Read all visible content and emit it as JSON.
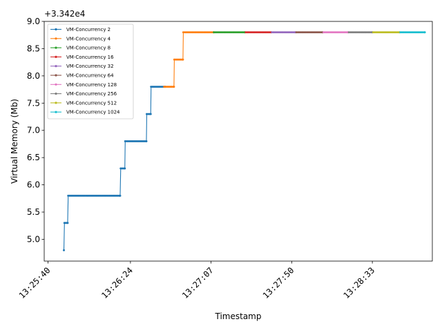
{
  "chart_data": {
    "type": "line",
    "title": "",
    "xlabel": "Timestamp",
    "ylabel": "Virtual Memory (Mb)",
    "y_offset_label": "+3.342e4",
    "ylim": [
      4.6,
      9.0
    ],
    "xlim_seconds": [
      -2,
      146
    ],
    "y_ticks": [
      5.0,
      5.5,
      6.0,
      6.5,
      7.0,
      7.5,
      8.0,
      8.5,
      9.0
    ],
    "y_tick_labels": [
      "5.0",
      "5.5",
      "6.0",
      "6.5",
      "7.0",
      "7.5",
      "8.0",
      "8.5",
      "9.0"
    ],
    "x_ticks_seconds": [
      0,
      44,
      87,
      130
    ],
    "x_tick_labels": [
      "13:25:40",
      "13:26:24",
      "13:27:07",
      "13:27:50",
      "13:28:33"
    ],
    "x_tick_positions_seconds": [
      0,
      44,
      87,
      130,
      173
    ],
    "legend_position": "upper-left",
    "grid": false,
    "series": [
      {
        "name": "VM-Concurrency 2",
        "color": "#1f77b4",
        "steps": [
          {
            "x_start": 8.5,
            "x_end": 8.5,
            "y": 4.8
          },
          {
            "x_start": 8.8,
            "x_end": 10.5,
            "y": 5.3
          },
          {
            "x_start": 10.8,
            "x_end": 38.5,
            "y": 5.8
          },
          {
            "x_start": 38.8,
            "x_end": 41.0,
            "y": 6.3
          },
          {
            "x_start": 41.2,
            "x_end": 52.5,
            "y": 6.8
          },
          {
            "x_start": 52.7,
            "x_end": 54.8,
            "y": 7.3
          },
          {
            "x_start": 55.0,
            "x_end": 62.5,
            "y": 7.8
          }
        ]
      },
      {
        "name": "VM-Concurrency 4",
        "color": "#ff7f0e",
        "steps": [
          {
            "x_start": 62.0,
            "x_end": 67.2,
            "y": 7.8
          },
          {
            "x_start": 67.4,
            "x_end": 72.0,
            "y": 8.3
          },
          {
            "x_start": 72.2,
            "x_end": 88.5,
            "y": 8.8
          }
        ]
      },
      {
        "name": "VM-Concurrency 8",
        "color": "#2ca02c",
        "steps": [
          {
            "x_start": 88.5,
            "x_end": 105.0,
            "y": 8.8
          }
        ]
      },
      {
        "name": "VM-Concurrency 16",
        "color": "#d62728",
        "steps": [
          {
            "x_start": 105.5,
            "x_end": 119.0,
            "y": 8.8
          }
        ]
      },
      {
        "name": "VM-Concurrency 32",
        "color": "#9467bd",
        "steps": [
          {
            "x_start": 119.5,
            "x_end": 132.0,
            "y": 8.8
          }
        ]
      },
      {
        "name": "VM-Concurrency 64",
        "color": "#8c564b",
        "steps": [
          {
            "x_start": 132.5,
            "x_end": 146.5,
            "y": 8.8
          }
        ]
      },
      {
        "name": "VM-Concurrency 128",
        "color": "#e377c2",
        "steps": [
          {
            "x_start": 147.0,
            "x_end": 160.0,
            "y": 8.8
          }
        ]
      },
      {
        "name": "VM-Concurrency 256",
        "color": "#7f7f7f",
        "steps": [
          {
            "x_start": 160.5,
            "x_end": 173.0,
            "y": 8.8
          }
        ]
      },
      {
        "name": "VM-Concurrency 512",
        "color": "#bcbd22",
        "steps": [
          {
            "x_start": 173.5,
            "x_end": 187.5,
            "y": 8.8
          }
        ]
      },
      {
        "name": "VM-Concurrency 1024",
        "color": "#17becf",
        "steps": [
          {
            "x_start": 188.0,
            "x_end": 201.0,
            "y": 8.8
          }
        ]
      }
    ]
  }
}
